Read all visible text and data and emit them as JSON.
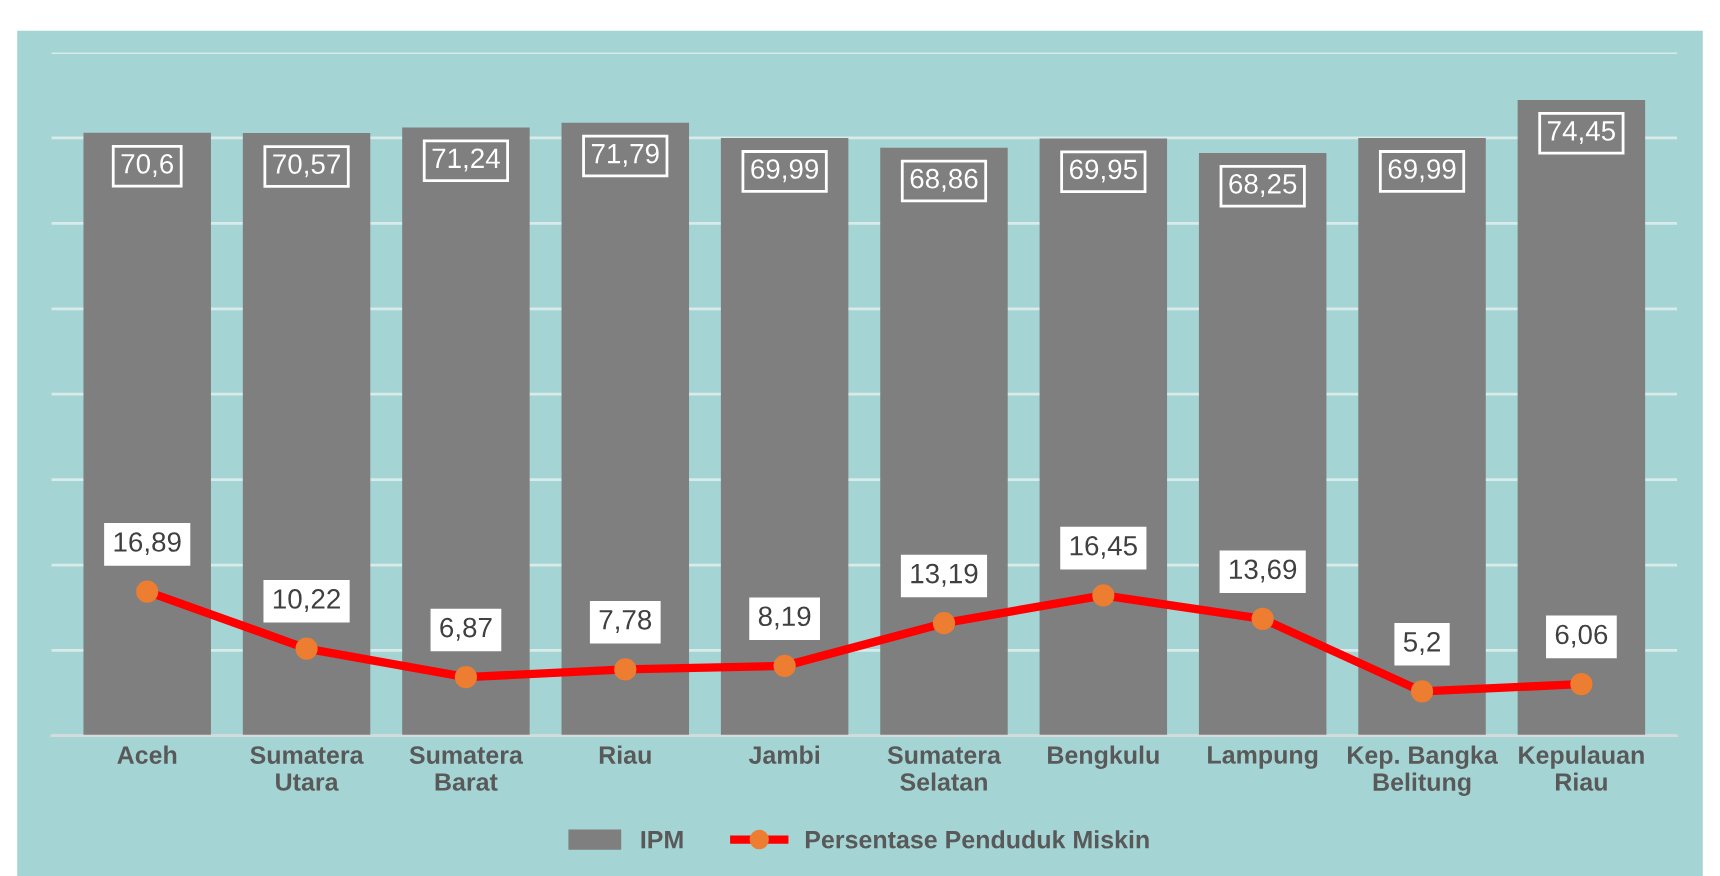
{
  "chart_data": {
    "type": "bar",
    "categories": [
      "Aceh",
      "Sumatera\nUtara",
      "Sumatera\nBarat",
      "Riau",
      "Jambi",
      "Sumatera\nSelatan",
      "Bengkulu",
      "Lampung",
      "Kep. Bangka\nBelitung",
      "Kepulauan\nRiau"
    ],
    "series": [
      {
        "name": "IPM",
        "color": "#7f7f7f",
        "values": [
          70.6,
          70.57,
          71.24,
          71.79,
          69.99,
          68.86,
          69.95,
          68.25,
          69.99,
          74.45
        ],
        "value_labels": [
          "70,6",
          "70,57",
          "71,24",
          "71,79",
          "69,99",
          "68,86",
          "69,95",
          "68,25",
          "69,99",
          "74,45"
        ]
      },
      {
        "name": "Persentase Penduduk Miskin",
        "type": "line",
        "color": "#ff0000",
        "marker": "circle",
        "values": [
          16.89,
          10.22,
          6.87,
          7.78,
          8.19,
          13.19,
          16.45,
          13.69,
          5.2,
          6.06
        ],
        "value_labels": [
          "16,89",
          "10,22",
          "6,87",
          "7,78",
          "8,19",
          "13,19",
          "16,45",
          "13,69",
          "5,2",
          "6,06"
        ]
      }
    ],
    "ylim": [
      0,
      80
    ],
    "yticks": [
      0,
      10,
      20,
      30,
      40,
      50,
      60,
      70,
      80
    ],
    "tick_labels": "x",
    "grid": "y",
    "legend": "bottom"
  }
}
